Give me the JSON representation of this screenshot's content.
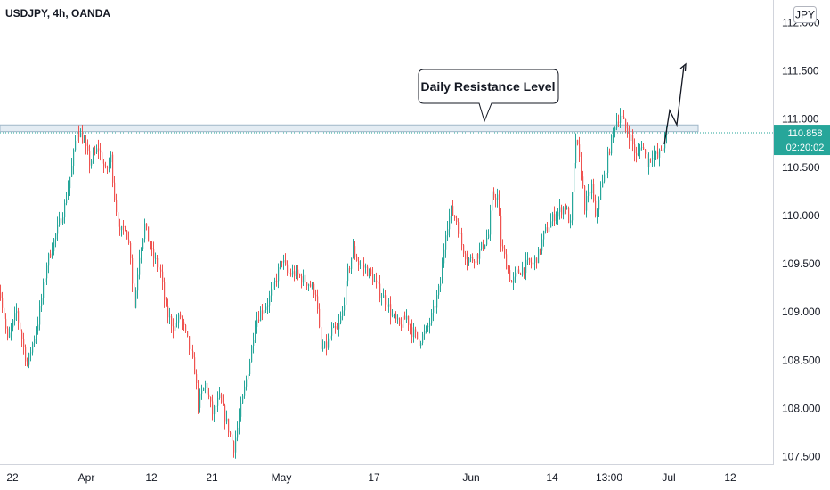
{
  "chart_data": {
    "type": "candlestick",
    "title": "USDJPY, 4h, OANDA",
    "currency": "JPY",
    "y_ticks": [
      "112.000",
      "111.500",
      "111.000",
      "110.500",
      "110.000",
      "109.500",
      "109.000",
      "108.500",
      "108.000",
      "107.500"
    ],
    "ylim": [
      107.45,
      112.05
    ],
    "x_ticks": [
      "22",
      "Apr",
      "12",
      "21",
      "May",
      "17",
      "Jun",
      "14",
      "13:00",
      "Jul",
      "12"
    ],
    "last_price": "110.858",
    "countdown": "02:20:02",
    "resistance_level": [
      110.88,
      110.93
    ],
    "annotation": "Daily Resistance Level",
    "colors": {
      "up": "#26a69a",
      "down": "#ef5350",
      "price": "#26a69a",
      "resistance": "#9fb6c8"
    },
    "path": [
      [
        0,
        109.2
      ],
      [
        8,
        108.7
      ],
      [
        18,
        109.0
      ],
      [
        30,
        108.45
      ],
      [
        42,
        108.9
      ],
      [
        52,
        109.5
      ],
      [
        62,
        109.8
      ],
      [
        72,
        110.1
      ],
      [
        80,
        110.5
      ],
      [
        86,
        110.9
      ],
      [
        92,
        110.8
      ],
      [
        100,
        110.55
      ],
      [
        110,
        110.7
      ],
      [
        118,
        110.45
      ],
      [
        124,
        110.6
      ],
      [
        128,
        110.2
      ],
      [
        134,
        109.8
      ],
      [
        140,
        109.9
      ],
      [
        146,
        109.6
      ],
      [
        150,
        109.05
      ],
      [
        156,
        109.6
      ],
      [
        162,
        109.9
      ],
      [
        170,
        109.6
      ],
      [
        180,
        109.4
      ],
      [
        186,
        109.0
      ],
      [
        194,
        108.85
      ],
      [
        202,
        108.95
      ],
      [
        210,
        108.7
      ],
      [
        218,
        108.4
      ],
      [
        222,
        108.05
      ],
      [
        230,
        108.25
      ],
      [
        238,
        107.95
      ],
      [
        246,
        108.1
      ],
      [
        254,
        107.85
      ],
      [
        262,
        107.6
      ],
      [
        266,
        107.8
      ],
      [
        272,
        108.1
      ],
      [
        280,
        108.5
      ],
      [
        286,
        108.9
      ],
      [
        292,
        109.0
      ],
      [
        300,
        109.1
      ],
      [
        308,
        109.3
      ],
      [
        316,
        109.55
      ],
      [
        322,
        109.4
      ],
      [
        330,
        109.4
      ],
      [
        338,
        109.35
      ],
      [
        346,
        109.3
      ],
      [
        354,
        109.2
      ],
      [
        360,
        108.6
      ],
      [
        366,
        108.65
      ],
      [
        372,
        108.8
      ],
      [
        378,
        108.8
      ],
      [
        384,
        109.0
      ],
      [
        390,
        109.4
      ],
      [
        396,
        109.65
      ],
      [
        402,
        109.5
      ],
      [
        410,
        109.45
      ],
      [
        418,
        109.35
      ],
      [
        426,
        109.2
      ],
      [
        434,
        109.1
      ],
      [
        440,
        108.95
      ],
      [
        448,
        108.85
      ],
      [
        456,
        108.95
      ],
      [
        462,
        108.8
      ],
      [
        470,
        108.7
      ],
      [
        478,
        108.8
      ],
      [
        486,
        109.0
      ],
      [
        494,
        109.3
      ],
      [
        500,
        109.85
      ],
      [
        506,
        110.05
      ],
      [
        512,
        109.95
      ],
      [
        518,
        109.7
      ],
      [
        524,
        109.55
      ],
      [
        530,
        109.55
      ],
      [
        536,
        109.6
      ],
      [
        542,
        109.7
      ],
      [
        548,
        109.8
      ],
      [
        552,
        110.2
      ],
      [
        558,
        110.2
      ],
      [
        562,
        109.7
      ],
      [
        568,
        109.5
      ],
      [
        574,
        109.3
      ],
      [
        580,
        109.4
      ],
      [
        586,
        109.45
      ],
      [
        592,
        109.5
      ],
      [
        598,
        109.5
      ],
      [
        604,
        109.6
      ],
      [
        610,
        109.8
      ],
      [
        616,
        109.9
      ],
      [
        622,
        110.0
      ],
      [
        628,
        110.05
      ],
      [
        634,
        110.1
      ],
      [
        640,
        109.9
      ],
      [
        646,
        110.8
      ],
      [
        652,
        110.45
      ],
      [
        656,
        110.1
      ],
      [
        660,
        110.2
      ],
      [
        664,
        110.3
      ],
      [
        668,
        109.95
      ],
      [
        672,
        110.2
      ],
      [
        678,
        110.4
      ],
      [
        684,
        110.7
      ],
      [
        690,
        110.95
      ],
      [
        696,
        111.05
      ],
      [
        702,
        110.9
      ],
      [
        708,
        110.8
      ],
      [
        714,
        110.6
      ],
      [
        720,
        110.75
      ],
      [
        726,
        110.55
      ],
      [
        732,
        110.65
      ],
      [
        738,
        110.6
      ],
      [
        743,
        110.7
      ],
      [
        748,
        110.85
      ]
    ]
  }
}
